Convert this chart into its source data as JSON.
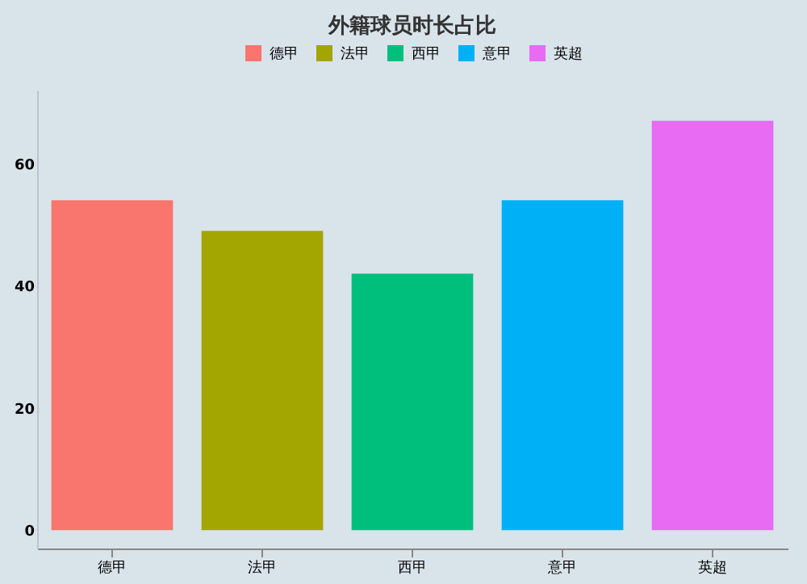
{
  "chart_data": {
    "type": "bar",
    "title": "外籍球员时长占比",
    "categories": [
      "德甲",
      "法甲",
      "西甲",
      "意甲",
      "英超"
    ],
    "series": [
      {
        "name": "德甲",
        "color": "#f8766d",
        "values": [
          54,
          null,
          null,
          null,
          null
        ]
      },
      {
        "name": "法甲",
        "color": "#a3a500",
        "values": [
          null,
          49,
          null,
          null,
          null
        ]
      },
      {
        "name": "西甲",
        "color": "#00bf7d",
        "values": [
          null,
          null,
          42,
          null,
          null
        ]
      },
      {
        "name": "意甲",
        "color": "#00b0f6",
        "values": [
          null,
          null,
          null,
          54,
          null
        ]
      },
      {
        "name": "英超",
        "color": "#e76bf3",
        "values": [
          null,
          null,
          null,
          null,
          67
        ]
      }
    ],
    "ylim": [
      -3,
      72
    ],
    "yticks": [
      0,
      20,
      40,
      60
    ],
    "grid": false,
    "legend": "top"
  }
}
